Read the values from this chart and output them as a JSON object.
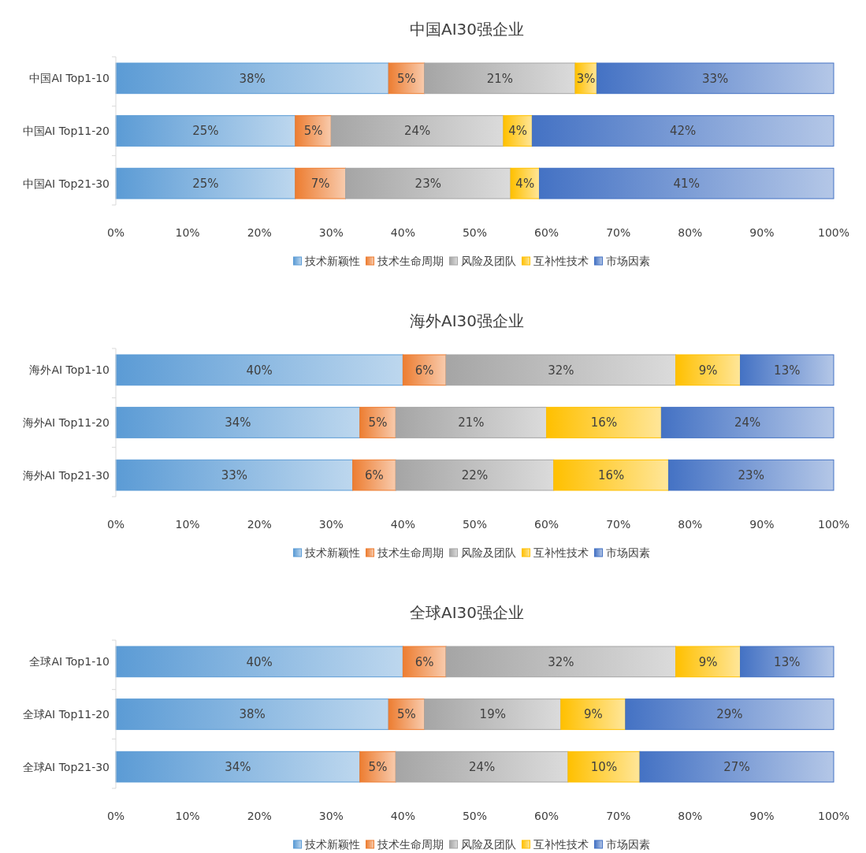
{
  "chart_data": [
    {
      "type": "bar",
      "orientation": "horizontal",
      "stacked": true,
      "title": "中国AI30强企业",
      "categories": [
        "中国AI Top1-10",
        "中国AI Top11-20",
        "中国AI Top21-30"
      ],
      "xlim": [
        0,
        100
      ],
      "xticks": [
        {
          "value": 0,
          "label": "0%"
        },
        {
          "value": 10,
          "label": "10%"
        },
        {
          "value": 20,
          "label": "20%"
        },
        {
          "value": 30,
          "label": "30%"
        },
        {
          "value": 40,
          "label": "40%"
        },
        {
          "value": 50,
          "label": "50%"
        },
        {
          "value": 60,
          "label": "60%"
        },
        {
          "value": 70,
          "label": "70%"
        },
        {
          "value": 80,
          "label": "80%"
        },
        {
          "value": 90,
          "label": "90%"
        },
        {
          "value": 100,
          "label": "100%"
        }
      ],
      "legend": "bottom",
      "series": [
        {
          "name": "技术新颖性",
          "color": "#5b9bd5",
          "values": [
            38,
            25,
            25
          ],
          "value_labels": [
            "38%",
            "25%",
            "25%"
          ]
        },
        {
          "name": "技术生命周期",
          "color": "#ed7d31",
          "values": [
            5,
            5,
            7
          ],
          "value_labels": [
            "5%",
            "5%",
            "7%"
          ]
        },
        {
          "name": "风险及团队",
          "color": "#a5a5a5",
          "values": [
            21,
            24,
            23
          ],
          "value_labels": [
            "21%",
            "24%",
            "23%"
          ]
        },
        {
          "name": "互补性技术",
          "color": "#ffc000",
          "values": [
            3,
            4,
            4
          ],
          "value_labels": [
            "3%",
            "4%",
            "4%"
          ]
        },
        {
          "name": "市场因素",
          "color": "#4472c4",
          "values": [
            33,
            42,
            41
          ],
          "value_labels": [
            "33%",
            "42%",
            "41%"
          ]
        }
      ]
    },
    {
      "type": "bar",
      "orientation": "horizontal",
      "stacked": true,
      "title": "海外AI30强企业",
      "categories": [
        "海外AI Top1-10",
        "海外AI Top11-20",
        "海外AI Top21-30"
      ],
      "xlim": [
        0,
        100
      ],
      "xticks": [
        {
          "value": 0,
          "label": "0%"
        },
        {
          "value": 10,
          "label": "10%"
        },
        {
          "value": 20,
          "label": "20%"
        },
        {
          "value": 30,
          "label": "30%"
        },
        {
          "value": 40,
          "label": "40%"
        },
        {
          "value": 50,
          "label": "50%"
        },
        {
          "value": 60,
          "label": "60%"
        },
        {
          "value": 70,
          "label": "70%"
        },
        {
          "value": 80,
          "label": "80%"
        },
        {
          "value": 90,
          "label": "90%"
        },
        {
          "value": 100,
          "label": "100%"
        }
      ],
      "legend": "bottom",
      "series": [
        {
          "name": "技术新颖性",
          "color": "#5b9bd5",
          "values": [
            40,
            34,
            33
          ],
          "value_labels": [
            "40%",
            "34%",
            "33%"
          ]
        },
        {
          "name": "技术生命周期",
          "color": "#ed7d31",
          "values": [
            6,
            5,
            6
          ],
          "value_labels": [
            "6%",
            "5%",
            "6%"
          ]
        },
        {
          "name": "风险及团队",
          "color": "#a5a5a5",
          "values": [
            32,
            21,
            22
          ],
          "value_labels": [
            "32%",
            "21%",
            "22%"
          ]
        },
        {
          "name": "互补性技术",
          "color": "#ffc000",
          "values": [
            9,
            16,
            16
          ],
          "value_labels": [
            "9%",
            "16%",
            "16%"
          ]
        },
        {
          "name": "市场因素",
          "color": "#4472c4",
          "values": [
            13,
            24,
            23
          ],
          "value_labels": [
            "13%",
            "24%",
            "23%"
          ]
        }
      ]
    },
    {
      "type": "bar",
      "orientation": "horizontal",
      "stacked": true,
      "title": "全球AI30强企业",
      "categories": [
        "全球AI Top1-10",
        "全球AI Top11-20",
        "全球AI Top21-30"
      ],
      "xlim": [
        0,
        100
      ],
      "xticks": [
        {
          "value": 0,
          "label": "0%"
        },
        {
          "value": 10,
          "label": "10%"
        },
        {
          "value": 20,
          "label": "20%"
        },
        {
          "value": 30,
          "label": "30%"
        },
        {
          "value": 40,
          "label": "40%"
        },
        {
          "value": 50,
          "label": "50%"
        },
        {
          "value": 60,
          "label": "60%"
        },
        {
          "value": 70,
          "label": "70%"
        },
        {
          "value": 80,
          "label": "80%"
        },
        {
          "value": 90,
          "label": "90%"
        },
        {
          "value": 100,
          "label": "100%"
        }
      ],
      "legend": "bottom",
      "series": [
        {
          "name": "技术新颖性",
          "color": "#5b9bd5",
          "values": [
            40,
            38,
            34
          ],
          "value_labels": [
            "40%",
            "38%",
            "34%"
          ]
        },
        {
          "name": "技术生命周期",
          "color": "#ed7d31",
          "values": [
            6,
            5,
            5
          ],
          "value_labels": [
            "6%",
            "5%",
            "5%"
          ]
        },
        {
          "name": "风险及团队",
          "color": "#a5a5a5",
          "values": [
            32,
            19,
            24
          ],
          "value_labels": [
            "32%",
            "19%",
            "24%"
          ]
        },
        {
          "name": "互补性技术",
          "color": "#ffc000",
          "values": [
            9,
            9,
            10
          ],
          "value_labels": [
            "9%",
            "9%",
            "10%"
          ]
        },
        {
          "name": "市场因素",
          "color": "#4472c4",
          "values": [
            13,
            29,
            27
          ],
          "value_labels": [
            "13%",
            "29%",
            "27%"
          ]
        }
      ]
    }
  ]
}
